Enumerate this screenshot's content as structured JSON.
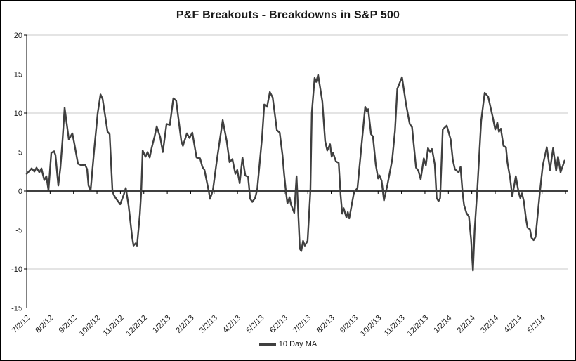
{
  "title": "P&F Breakouts - Breakdowns in S&P 500",
  "legend": {
    "label": "10 Day MA"
  },
  "colors": {
    "line": "#3f3f3f",
    "grid": "#c8c8c8",
    "axis": "#000000",
    "text": "#1a1a1a"
  },
  "chart_data": {
    "type": "line",
    "title": "P&F Breakouts - Breakdowns in S&P 500",
    "xlabel": "",
    "ylabel": "",
    "ylim": [
      -15,
      20
    ],
    "y_ticks": [
      20,
      15,
      10,
      5,
      0,
      -5,
      -10,
      -15
    ],
    "x_tick_labels": [
      "7/2/12",
      "8/2/12",
      "9/2/12",
      "10/2/12",
      "11/2/12",
      "12/2/12",
      "1/2/13",
      "2/2/13",
      "3/2/13",
      "4/2/13",
      "5/2/13",
      "6/2/13",
      "7/2/13",
      "8/2/13",
      "9/2/13",
      "10/2/13",
      "11/2/13",
      "12/2/13",
      "1/2/14",
      "2/2/14",
      "3/2/14",
      "4/2/14",
      "5/2/14"
    ],
    "x_axis_months": 23,
    "grid": "horizontal",
    "legend_position": "bottom-center",
    "series": [
      {
        "name": "10 Day MA",
        "color": "#3f3f3f",
        "points_format": "[month_index_from_7/2/12, value]",
        "points": [
          [
            0.0,
            2.2
          ],
          [
            0.21,
            2.9
          ],
          [
            0.33,
            2.5
          ],
          [
            0.42,
            3.0
          ],
          [
            0.54,
            2.4
          ],
          [
            0.63,
            2.9
          ],
          [
            0.75,
            1.4
          ],
          [
            0.84,
            1.9
          ],
          [
            0.93,
            0.1
          ],
          [
            1.05,
            4.9
          ],
          [
            1.17,
            5.1
          ],
          [
            1.23,
            4.6
          ],
          [
            1.35,
            0.7
          ],
          [
            1.44,
            3.0
          ],
          [
            1.53,
            6.5
          ],
          [
            1.62,
            10.7
          ],
          [
            1.8,
            6.6
          ],
          [
            1.95,
            7.4
          ],
          [
            2.04,
            6.0
          ],
          [
            2.19,
            3.5
          ],
          [
            2.34,
            3.3
          ],
          [
            2.49,
            3.4
          ],
          [
            2.58,
            2.8
          ],
          [
            2.64,
            0.7
          ],
          [
            2.73,
            0.1
          ],
          [
            2.88,
            5.2
          ],
          [
            3.03,
            10.0
          ],
          [
            3.15,
            12.4
          ],
          [
            3.24,
            11.8
          ],
          [
            3.45,
            7.6
          ],
          [
            3.54,
            7.3
          ],
          [
            3.66,
            0.0
          ],
          [
            3.72,
            -0.5
          ],
          [
            3.8,
            -0.9
          ],
          [
            3.99,
            -1.7
          ],
          [
            4.14,
            -0.5
          ],
          [
            4.23,
            0.4
          ],
          [
            4.35,
            -1.9
          ],
          [
            4.5,
            -5.9
          ],
          [
            4.56,
            -7.0
          ],
          [
            4.65,
            -6.7
          ],
          [
            4.71,
            -7.0
          ],
          [
            4.83,
            -3.0
          ],
          [
            4.89,
            0.0
          ],
          [
            4.95,
            5.2
          ],
          [
            5.07,
            4.4
          ],
          [
            5.16,
            5.0
          ],
          [
            5.25,
            4.3
          ],
          [
            5.34,
            5.6
          ],
          [
            5.46,
            7.0
          ],
          [
            5.55,
            8.3
          ],
          [
            5.7,
            6.9
          ],
          [
            5.81,
            5.0
          ],
          [
            5.97,
            8.6
          ],
          [
            6.11,
            8.5
          ],
          [
            6.26,
            11.9
          ],
          [
            6.38,
            11.6
          ],
          [
            6.6,
            6.4
          ],
          [
            6.67,
            5.8
          ],
          [
            6.84,
            7.4
          ],
          [
            6.95,
            6.8
          ],
          [
            7.07,
            7.5
          ],
          [
            7.25,
            4.3
          ],
          [
            7.4,
            4.2
          ],
          [
            7.5,
            3.1
          ],
          [
            7.59,
            2.7
          ],
          [
            7.77,
            0.0
          ],
          [
            7.83,
            -1.0
          ],
          [
            7.95,
            0.1
          ],
          [
            8.12,
            4.0
          ],
          [
            8.37,
            9.1
          ],
          [
            8.54,
            6.4
          ],
          [
            8.66,
            3.7
          ],
          [
            8.78,
            4.1
          ],
          [
            8.91,
            2.2
          ],
          [
            8.99,
            2.7
          ],
          [
            9.09,
            1.0
          ],
          [
            9.21,
            4.3
          ],
          [
            9.33,
            2.0
          ],
          [
            9.45,
            1.8
          ],
          [
            9.54,
            -1.0
          ],
          [
            9.63,
            -1.4
          ],
          [
            9.75,
            -0.9
          ],
          [
            9.84,
            0.2
          ],
          [
            10.05,
            7.0
          ],
          [
            10.14,
            11.1
          ],
          [
            10.26,
            10.8
          ],
          [
            10.38,
            12.7
          ],
          [
            10.5,
            12.0
          ],
          [
            10.68,
            7.8
          ],
          [
            10.8,
            7.5
          ],
          [
            10.92,
            4.6
          ],
          [
            10.99,
            2.2
          ],
          [
            11.07,
            -0.2
          ],
          [
            11.13,
            -1.6
          ],
          [
            11.22,
            -0.8
          ],
          [
            11.28,
            -1.7
          ],
          [
            11.42,
            -2.8
          ],
          [
            11.52,
            1.9
          ],
          [
            11.66,
            -7.4
          ],
          [
            11.72,
            -7.7
          ],
          [
            11.8,
            -6.4
          ],
          [
            11.87,
            -7.0
          ],
          [
            11.99,
            -6.4
          ],
          [
            12.11,
            0.0
          ],
          [
            12.17,
            10.0
          ],
          [
            12.29,
            14.5
          ],
          [
            12.36,
            14.0
          ],
          [
            12.44,
            14.9
          ],
          [
            12.62,
            11.5
          ],
          [
            12.74,
            6.4
          ],
          [
            12.83,
            5.2
          ],
          [
            12.95,
            6.0
          ],
          [
            13.02,
            4.4
          ],
          [
            13.08,
            4.9
          ],
          [
            13.2,
            3.8
          ],
          [
            13.32,
            3.6
          ],
          [
            13.4,
            -0.5
          ],
          [
            13.47,
            -2.9
          ],
          [
            13.53,
            -2.2
          ],
          [
            13.65,
            -3.4
          ],
          [
            13.71,
            -2.7
          ],
          [
            13.77,
            -3.5
          ],
          [
            13.97,
            -0.2
          ],
          [
            14.12,
            0.4
          ],
          [
            14.33,
            7.0
          ],
          [
            14.45,
            10.8
          ],
          [
            14.52,
            10.2
          ],
          [
            14.58,
            10.5
          ],
          [
            14.7,
            7.3
          ],
          [
            14.78,
            7.0
          ],
          [
            14.9,
            3.4
          ],
          [
            15.0,
            1.6
          ],
          [
            15.06,
            2.0
          ],
          [
            15.15,
            1.3
          ],
          [
            15.25,
            -1.2
          ],
          [
            15.4,
            0.8
          ],
          [
            15.6,
            4.0
          ],
          [
            15.72,
            7.7
          ],
          [
            15.82,
            13.1
          ],
          [
            16.02,
            14.6
          ],
          [
            16.2,
            11.0
          ],
          [
            16.35,
            8.6
          ],
          [
            16.45,
            8.2
          ],
          [
            16.62,
            3.0
          ],
          [
            16.72,
            2.6
          ],
          [
            16.82,
            1.5
          ],
          [
            16.95,
            4.2
          ],
          [
            17.04,
            3.3
          ],
          [
            17.13,
            5.5
          ],
          [
            17.22,
            5.0
          ],
          [
            17.3,
            5.4
          ],
          [
            17.42,
            3.4
          ],
          [
            17.5,
            -0.9
          ],
          [
            17.58,
            -1.3
          ],
          [
            17.65,
            -0.9
          ],
          [
            17.76,
            7.9
          ],
          [
            17.93,
            8.4
          ],
          [
            18.1,
            6.6
          ],
          [
            18.19,
            4.0
          ],
          [
            18.28,
            2.8
          ],
          [
            18.44,
            2.4
          ],
          [
            18.52,
            3.1
          ],
          [
            18.61,
            -0.3
          ],
          [
            18.67,
            -1.8
          ],
          [
            18.77,
            -2.8
          ],
          [
            18.88,
            -3.3
          ],
          [
            18.97,
            -6.2
          ],
          [
            19.05,
            -10.2
          ],
          [
            19.12,
            -5.0
          ],
          [
            19.24,
            0.5
          ],
          [
            19.4,
            9.0
          ],
          [
            19.55,
            12.6
          ],
          [
            19.7,
            12.1
          ],
          [
            19.9,
            9.4
          ],
          [
            20.0,
            7.9
          ],
          [
            20.09,
            8.8
          ],
          [
            20.16,
            7.6
          ],
          [
            20.24,
            8.0
          ],
          [
            20.35,
            5.8
          ],
          [
            20.46,
            5.6
          ],
          [
            20.52,
            3.7
          ],
          [
            20.64,
            1.6
          ],
          [
            20.73,
            -0.7
          ],
          [
            20.88,
            1.9
          ],
          [
            21.0,
            -0.2
          ],
          [
            21.07,
            -0.9
          ],
          [
            21.14,
            -0.3
          ],
          [
            21.22,
            -1.3
          ],
          [
            21.31,
            -3.5
          ],
          [
            21.38,
            -4.7
          ],
          [
            21.48,
            -4.9
          ],
          [
            21.55,
            -6.0
          ],
          [
            21.64,
            -6.3
          ],
          [
            21.72,
            -5.9
          ],
          [
            21.9,
            -0.3
          ],
          [
            22.03,
            3.3
          ],
          [
            22.09,
            4.1
          ],
          [
            22.2,
            5.6
          ],
          [
            22.34,
            2.7
          ],
          [
            22.47,
            5.5
          ],
          [
            22.6,
            2.6
          ],
          [
            22.68,
            4.4
          ],
          [
            22.79,
            2.4
          ],
          [
            22.96,
            3.9
          ]
        ]
      }
    ]
  }
}
